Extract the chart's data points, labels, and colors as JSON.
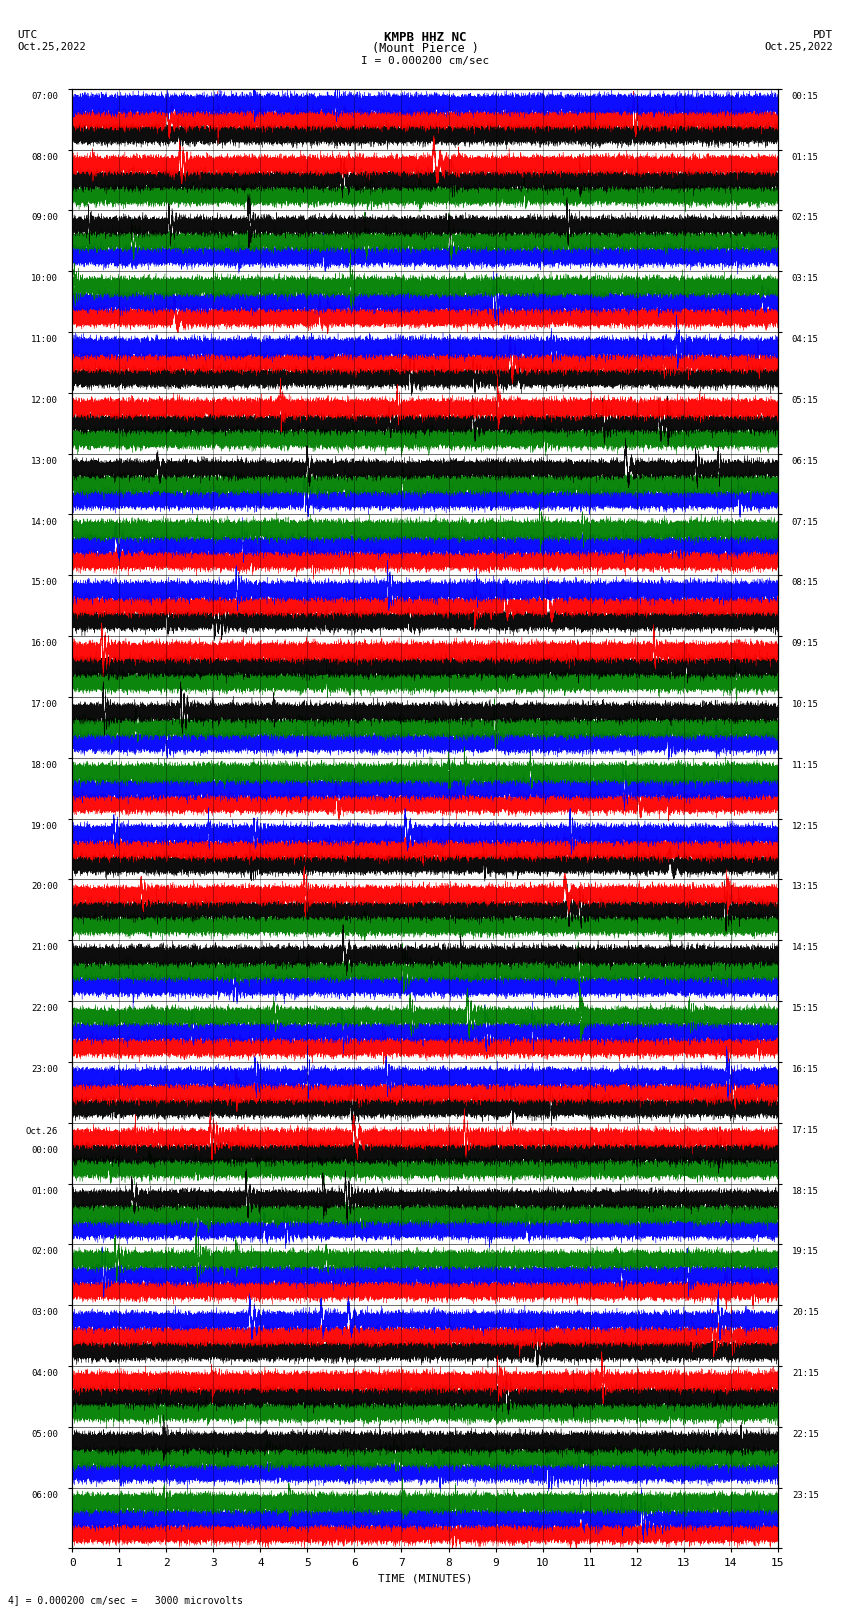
{
  "title_line1": "KMPB HHZ NC",
  "title_line2": "(Mount Pierce )",
  "scale_text": "I = 0.000200 cm/sec",
  "left_label_top": "UTC",
  "left_label_date": "Oct.25,2022",
  "right_label_top": "PDT",
  "right_label_date": "Oct.25,2022",
  "bottom_label": "TIME (MINUTES)",
  "bottom_note": "4] = 0.000200 cm/sec =   3000 microvolts",
  "utc_times_left": [
    "07:00",
    "08:00",
    "09:00",
    "10:00",
    "11:00",
    "12:00",
    "13:00",
    "14:00",
    "15:00",
    "16:00",
    "17:00",
    "18:00",
    "19:00",
    "20:00",
    "21:00",
    "22:00",
    "23:00",
    "Oct.26\n00:00",
    "01:00",
    "02:00",
    "03:00",
    "04:00",
    "05:00",
    "06:00"
  ],
  "pdt_times_right": [
    "00:15",
    "01:15",
    "02:15",
    "03:15",
    "04:15",
    "05:15",
    "06:15",
    "07:15",
    "08:15",
    "09:15",
    "10:15",
    "11:15",
    "12:15",
    "13:15",
    "14:15",
    "15:15",
    "16:15",
    "17:15",
    "18:15",
    "19:15",
    "20:15",
    "21:15",
    "22:15",
    "23:15"
  ],
  "n_rows": 24,
  "n_subtraces": 3,
  "n_minutes": 15,
  "sample_rate": 100,
  "bg_color": "white",
  "row_colors": [
    [
      "black",
      "red",
      "blue"
    ],
    [
      "green",
      "black",
      "red"
    ],
    [
      "blue",
      "green",
      "black"
    ],
    [
      "red",
      "blue",
      "green"
    ],
    [
      "black",
      "red",
      "blue"
    ],
    [
      "green",
      "black",
      "red"
    ],
    [
      "blue",
      "green",
      "black"
    ],
    [
      "red",
      "blue",
      "green"
    ],
    [
      "black",
      "red",
      "blue"
    ],
    [
      "green",
      "black",
      "red"
    ],
    [
      "blue",
      "green",
      "black"
    ],
    [
      "red",
      "blue",
      "green"
    ],
    [
      "black",
      "red",
      "blue"
    ],
    [
      "green",
      "black",
      "red"
    ],
    [
      "blue",
      "green",
      "black"
    ],
    [
      "red",
      "blue",
      "green"
    ],
    [
      "black",
      "red",
      "blue"
    ],
    [
      "green",
      "black",
      "red"
    ],
    [
      "blue",
      "green",
      "black"
    ],
    [
      "red",
      "blue",
      "green"
    ],
    [
      "black",
      "red",
      "blue"
    ],
    [
      "green",
      "black",
      "red"
    ],
    [
      "blue",
      "green",
      "black"
    ],
    [
      "red",
      "blue",
      "green"
    ]
  ],
  "fig_width": 8.5,
  "fig_height": 16.13
}
